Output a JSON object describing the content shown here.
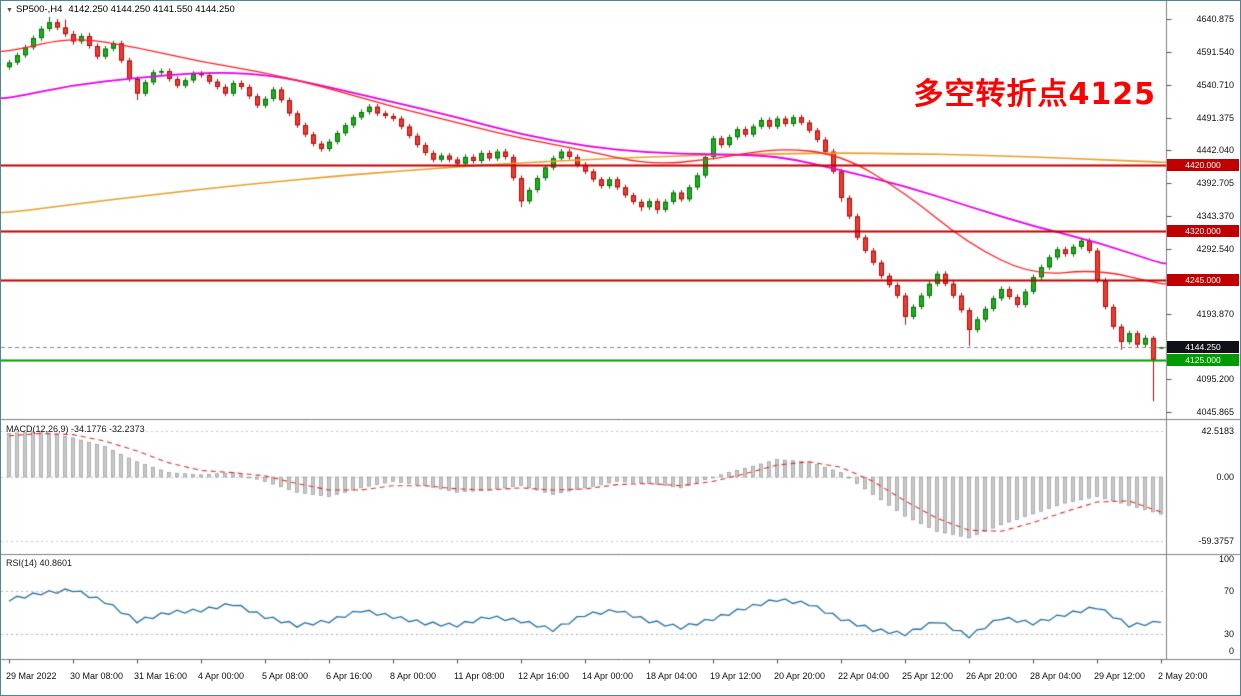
{
  "window": {
    "symbol": "SP500-,H4",
    "ohlc": "4142.250 4144.250 4141.550 4144.250",
    "dropdown_icon": "▼"
  },
  "annotation": {
    "text": "多空转折点4125",
    "color": "#ff0000"
  },
  "macd_panel": {
    "label": "MACD(12,26,9) -34.1776 -32.2373",
    "axis": [
      {
        "text": "42.5183",
        "value": 42.5183
      },
      {
        "text": "0.00",
        "value": 0
      },
      {
        "text": "-59.3757",
        "value": -59.3757
      }
    ]
  },
  "rsi_panel": {
    "label": "RSI(14) 40.8601",
    "axis": [
      {
        "text": "100",
        "value": 100
      },
      {
        "text": "70",
        "value": 70
      },
      {
        "text": "30",
        "value": 30
      },
      {
        "text": "0",
        "value": 0
      }
    ]
  },
  "price_axis": {
    "labels": [
      4640.875,
      4591.54,
      4540.71,
      4491.375,
      4442.04,
      4392.705,
      4343.37,
      4292.54,
      4193.87,
      4095.2,
      4045.865
    ]
  },
  "levels": [
    {
      "text": "4420.000",
      "price": 4420.0,
      "color": "#c00000",
      "type": "resistance"
    },
    {
      "text": "4320.000",
      "price": 4320.0,
      "color": "#c00000",
      "type": "resistance"
    },
    {
      "text": "4245.000",
      "price": 4245.0,
      "color": "#c00000",
      "type": "resistance"
    },
    {
      "text": "4125.000",
      "price": 4125.0,
      "color": "#009b00",
      "type": "support"
    },
    {
      "text": "4144.250",
      "price": 4144.25,
      "color": "#101018",
      "type": "current_price"
    }
  ],
  "time_axis": {
    "labels": [
      {
        "text": "29 Mar 2022",
        "i": 0
      },
      {
        "text": "30 Mar 08:00",
        "i": 8
      },
      {
        "text": "31 Mar 16:00",
        "i": 16
      },
      {
        "text": "4 Apr 00:00",
        "i": 24
      },
      {
        "text": "5 Apr 08:00",
        "i": 32
      },
      {
        "text": "6 Apr 16:00",
        "i": 40
      },
      {
        "text": "8 Apr 00:00",
        "i": 48
      },
      {
        "text": "11 Apr 08:00",
        "i": 56
      },
      {
        "text": "12 Apr 16:00",
        "i": 64
      },
      {
        "text": "14 Apr 00:00",
        "i": 72
      },
      {
        "text": "18 Apr 04:00",
        "i": 80
      },
      {
        "text": "19 Apr 12:00",
        "i": 88
      },
      {
        "text": "20 Apr 20:00",
        "i": 96
      },
      {
        "text": "22 Apr 04:00",
        "i": 104
      },
      {
        "text": "25 Apr 12:00",
        "i": 112
      },
      {
        "text": "26 Apr 20:00",
        "i": 120
      },
      {
        "text": "28 Apr 04:00",
        "i": 128
      },
      {
        "text": "29 Apr 12:00",
        "i": 136
      },
      {
        "text": "2 May 20:00",
        "i": 144
      }
    ]
  },
  "chart_data": {
    "type": "candlestick",
    "symbol": "SP500",
    "timeframe": "H4",
    "title": "SP500-,H4",
    "legend": [
      "candles",
      "MA slow (magenta)",
      "MA mid (red)",
      "MA long (orange)",
      "MACD(12,26,9)",
      "RSI(14)"
    ],
    "price_ylim": [
      4045.865,
      4640.875
    ],
    "macd_ylim": [
      -59.3757,
      42.5183
    ],
    "rsi_ylim": [
      0,
      100
    ],
    "colors": {
      "up": "#1db21d",
      "up_border": "#0b6b0b",
      "down": "#f23b2e",
      "down_border": "#a31111",
      "ma_slow": "#e800e8",
      "ma_mid": "#ff2020",
      "ma_long": "#e8a030",
      "macd_hist": "#c8c8c8",
      "macd_hist_border": "#8f8f8f",
      "macd_signal": "#e03030",
      "rsi_line": "#2470a8",
      "current_price_line": "#888888"
    },
    "candles": [
      [
        4568,
        4579,
        4564,
        4575
      ],
      [
        4575,
        4590,
        4571,
        4586
      ],
      [
        4586,
        4602,
        4582,
        4598
      ],
      [
        4598,
        4616,
        4594,
        4612
      ],
      [
        4612,
        4630,
        4608,
        4626
      ],
      [
        4626,
        4644,
        4622,
        4636
      ],
      [
        4636,
        4641,
        4624,
        4628
      ],
      [
        4628,
        4640,
        4614,
        4618
      ],
      [
        4618,
        4623,
        4602,
        4607
      ],
      [
        4607,
        4619,
        4603,
        4615
      ],
      [
        4615,
        4620,
        4596,
        4600
      ],
      [
        4600,
        4604,
        4580,
        4584
      ],
      [
        4584,
        4600,
        4580,
        4596
      ],
      [
        4596,
        4608,
        4592,
        4604
      ],
      [
        4604,
        4608,
        4574,
        4578
      ],
      [
        4578,
        4582,
        4546,
        4550
      ],
      [
        4550,
        4554,
        4518,
        4528
      ],
      [
        4528,
        4549,
        4524,
        4545
      ],
      [
        4545,
        4564,
        4541,
        4560
      ],
      [
        4560,
        4566,
        4556,
        4562
      ],
      [
        4562,
        4566,
        4546,
        4550
      ],
      [
        4550,
        4554,
        4536,
        4540
      ],
      [
        4540,
        4552,
        4536,
        4548
      ],
      [
        4548,
        4562,
        4544,
        4558
      ],
      [
        4558,
        4562,
        4552,
        4556
      ],
      [
        4556,
        4560,
        4542,
        4546
      ],
      [
        4546,
        4550,
        4534,
        4538
      ],
      [
        4538,
        4542,
        4524,
        4528
      ],
      [
        4528,
        4548,
        4524,
        4544
      ],
      [
        4544,
        4548,
        4534,
        4538
      ],
      [
        4538,
        4542,
        4520,
        4524
      ],
      [
        4524,
        4528,
        4506,
        4510
      ],
      [
        4510,
        4524,
        4506,
        4520
      ],
      [
        4520,
        4538,
        4516,
        4534
      ],
      [
        4534,
        4538,
        4514,
        4518
      ],
      [
        4518,
        4522,
        4494,
        4498
      ],
      [
        4498,
        4502,
        4476,
        4480
      ],
      [
        4480,
        4484,
        4462,
        4466
      ],
      [
        4466,
        4470,
        4448,
        4452
      ],
      [
        4452,
        4456,
        4440,
        4444
      ],
      [
        4444,
        4459,
        4440,
        4455
      ],
      [
        4455,
        4472,
        4451,
        4468
      ],
      [
        4468,
        4484,
        4464,
        4480
      ],
      [
        4480,
        4496,
        4476,
        4492
      ],
      [
        4492,
        4504,
        4488,
        4500
      ],
      [
        4500,
        4512,
        4496,
        4508
      ],
      [
        4508,
        4512,
        4494,
        4498
      ],
      [
        4498,
        4502,
        4490,
        4494
      ],
      [
        4494,
        4498,
        4486,
        4490
      ],
      [
        4490,
        4494,
        4474,
        4478
      ],
      [
        4478,
        4482,
        4460,
        4464
      ],
      [
        4464,
        4468,
        4446,
        4450
      ],
      [
        4450,
        4454,
        4434,
        4438
      ],
      [
        4438,
        4442,
        4424,
        4428
      ],
      [
        4428,
        4438,
        4424,
        4434
      ],
      [
        4434,
        4438,
        4424,
        4428
      ],
      [
        4428,
        4432,
        4418,
        4422
      ],
      [
        4422,
        4436,
        4418,
        4432
      ],
      [
        4432,
        4436,
        4422,
        4426
      ],
      [
        4426,
        4442,
        4422,
        4438
      ],
      [
        4438,
        4442,
        4426,
        4430
      ],
      [
        4430,
        4444,
        4426,
        4440
      ],
      [
        4440,
        4444,
        4428,
        4432
      ],
      [
        4432,
        4436,
        4396,
        4400
      ],
      [
        4400,
        4404,
        4356,
        4365
      ],
      [
        4365,
        4386,
        4361,
        4382
      ],
      [
        4382,
        4404,
        4378,
        4400
      ],
      [
        4400,
        4420,
        4396,
        4416
      ],
      [
        4416,
        4434,
        4412,
        4430
      ],
      [
        4430,
        4444,
        4426,
        4440
      ],
      [
        4440,
        4444,
        4428,
        4432
      ],
      [
        4432,
        4436,
        4416,
        4420
      ],
      [
        4420,
        4424,
        4406,
        4410
      ],
      [
        4410,
        4414,
        4394,
        4398
      ],
      [
        4398,
        4402,
        4384,
        4388
      ],
      [
        4388,
        4402,
        4384,
        4398
      ],
      [
        4398,
        4402,
        4382,
        4386
      ],
      [
        4386,
        4390,
        4370,
        4374
      ],
      [
        4374,
        4378,
        4360,
        4364
      ],
      [
        4364,
        4368,
        4350,
        4356
      ],
      [
        4356,
        4369,
        4352,
        4365
      ],
      [
        4365,
        4369,
        4346,
        4352
      ],
      [
        4352,
        4368,
        4348,
        4364
      ],
      [
        4364,
        4382,
        4360,
        4378
      ],
      [
        4378,
        4382,
        4364,
        4368
      ],
      [
        4368,
        4390,
        4364,
        4386
      ],
      [
        4386,
        4408,
        4382,
        4404
      ],
      [
        4404,
        4436,
        4400,
        4432
      ],
      [
        4432,
        4464,
        4428,
        4460
      ],
      [
        4460,
        4464,
        4446,
        4450
      ],
      [
        4450,
        4466,
        4446,
        4462
      ],
      [
        4462,
        4478,
        4458,
        4474
      ],
      [
        4474,
        4478,
        4462,
        4466
      ],
      [
        4466,
        4482,
        4462,
        4478
      ],
      [
        4478,
        4492,
        4474,
        4488
      ],
      [
        4488,
        4492,
        4474,
        4478
      ],
      [
        4478,
        4494,
        4474,
        4490
      ],
      [
        4490,
        4494,
        4478,
        4482
      ],
      [
        4482,
        4496,
        4478,
        4492
      ],
      [
        4492,
        4496,
        4480,
        4484
      ],
      [
        4484,
        4488,
        4468,
        4472
      ],
      [
        4472,
        4476,
        4454,
        4458
      ],
      [
        4458,
        4462,
        4436,
        4440
      ],
      [
        4440,
        4444,
        4406,
        4410
      ],
      [
        4410,
        4414,
        4364,
        4370
      ],
      [
        4370,
        4374,
        4338,
        4342
      ],
      [
        4342,
        4346,
        4306,
        4310
      ],
      [
        4310,
        4314,
        4286,
        4290
      ],
      [
        4290,
        4294,
        4268,
        4272
      ],
      [
        4272,
        4276,
        4248,
        4252
      ],
      [
        4252,
        4256,
        4234,
        4238
      ],
      [
        4238,
        4242,
        4218,
        4222
      ],
      [
        4222,
        4226,
        4178,
        4190
      ],
      [
        4190,
        4209,
        4186,
        4205
      ],
      [
        4205,
        4226,
        4201,
        4222
      ],
      [
        4222,
        4244,
        4218,
        4240
      ],
      [
        4240,
        4259,
        4236,
        4255
      ],
      [
        4255,
        4259,
        4236,
        4240
      ],
      [
        4240,
        4244,
        4218,
        4222
      ],
      [
        4222,
        4226,
        4196,
        4200
      ],
      [
        4200,
        4204,
        4146,
        4170
      ],
      [
        4170,
        4190,
        4166,
        4186
      ],
      [
        4186,
        4206,
        4182,
        4202
      ],
      [
        4202,
        4222,
        4198,
        4218
      ],
      [
        4218,
        4236,
        4214,
        4232
      ],
      [
        4232,
        4236,
        4216,
        4220
      ],
      [
        4220,
        4224,
        4204,
        4208
      ],
      [
        4208,
        4232,
        4204,
        4228
      ],
      [
        4228,
        4254,
        4224,
        4250
      ],
      [
        4250,
        4269,
        4246,
        4265
      ],
      [
        4265,
        4284,
        4261,
        4280
      ],
      [
        4280,
        4296,
        4276,
        4292
      ],
      [
        4292,
        4296,
        4281,
        4285
      ],
      [
        4285,
        4300,
        4281,
        4296
      ],
      [
        4296,
        4309,
        4292,
        4305
      ],
      [
        4305,
        4309,
        4286,
        4290
      ],
      [
        4290,
        4294,
        4241,
        4245
      ],
      [
        4245,
        4249,
        4201,
        4205
      ],
      [
        4205,
        4209,
        4171,
        4175
      ],
      [
        4175,
        4179,
        4140,
        4152
      ],
      [
        4152,
        4169,
        4148,
        4165
      ],
      [
        4165,
        4169,
        4144,
        4148
      ],
      [
        4148,
        4162,
        4144,
        4158
      ],
      [
        4158,
        4161,
        4062,
        4125
      ],
      [
        4142.25,
        4144.25,
        4141.55,
        4144.25
      ]
    ],
    "ma_slow_sampled_every8": [
      4521,
      4541,
      4552,
      4560,
      4558,
      4538,
      4515,
      4492,
      4466,
      4448,
      4438,
      4436,
      4434,
      4412,
      4388,
      4357,
      4327,
      4303,
      4271
    ],
    "ma_mid_sampled_every8": [
      4592,
      4614,
      4598,
      4576,
      4560,
      4536,
      4508,
      4484,
      4460,
      4442,
      4420,
      4428,
      4446,
      4436,
      4378,
      4300,
      4252,
      4262,
      4240
    ],
    "ma_long_sampled_every8": [
      4348,
      4360,
      4372,
      4383,
      4393,
      4402,
      4410,
      4417,
      4423,
      4428,
      4432,
      4435,
      4437,
      4438,
      4437,
      4435,
      4432,
      4428,
      4424
    ],
    "macd_sampled_every4": [
      40,
      42,
      36,
      28,
      14,
      4,
      2,
      4,
      -4,
      -14,
      -18,
      -10,
      -4,
      -8,
      -14,
      -12,
      -8,
      -16,
      -10,
      -4,
      -6,
      -10,
      0,
      8,
      16,
      14,
      4,
      -16,
      -36,
      -50,
      -56,
      -44,
      -34,
      -24,
      -18,
      -26,
      -34.18
    ],
    "signal_sampled_every4": [
      38,
      40,
      39,
      33,
      24,
      13,
      6,
      4,
      1,
      -6,
      -12,
      -12,
      -8,
      -8,
      -11,
      -12,
      -10,
      -12,
      -11,
      -7,
      -6,
      -8,
      -4,
      3,
      11,
      14,
      9,
      -4,
      -22,
      -38,
      -49,
      -50,
      -42,
      -32,
      -23,
      -22,
      -32.24
    ],
    "rsi_sampled_every4": [
      62,
      68,
      71,
      60,
      42,
      50,
      52,
      58,
      46,
      38,
      42,
      52,
      46,
      40,
      38,
      46,
      42,
      34,
      48,
      52,
      42,
      36,
      44,
      54,
      62,
      58,
      44,
      34,
      30,
      42,
      28,
      45,
      40,
      48,
      55,
      38,
      40.86
    ]
  }
}
